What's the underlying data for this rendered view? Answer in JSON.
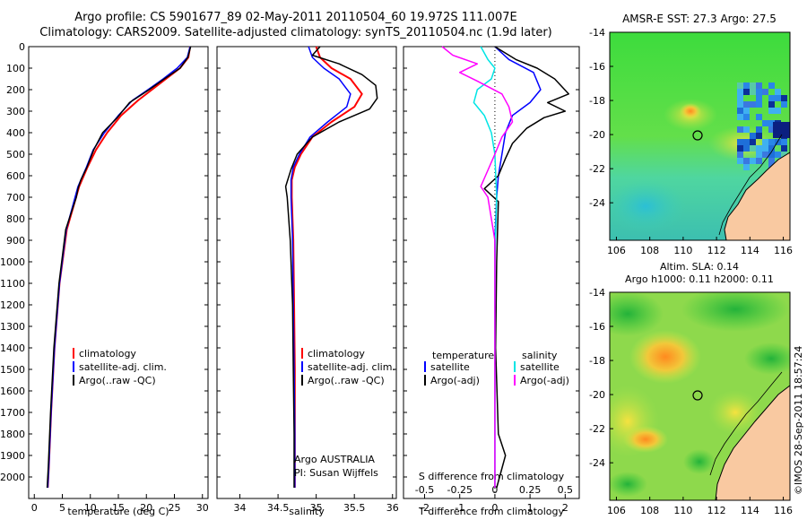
{
  "header": {
    "line1": "Argo profile: CS 5901677_89 02-May-2011 20110504_60 19.972S 111.007E",
    "line2": "Climatology: CARS2009. Satellite-adjusted climatology: synTS_20110504.nc (1.9d later)"
  },
  "sst_title": "AMSR-E SST: 27.3 Argo: 27.5",
  "sla_title1": "Altim. SLA: 0.14",
  "sla_title2": "Argo h1000: 0.11 h2000: 0.11",
  "credit": "©IMOS 28-Sep-2011 18:57:24",
  "colors": {
    "climatology": "#ff0000",
    "satellite": "#0000ff",
    "argo": "#000000",
    "sal_satellite": "#00e5e5",
    "sal_argo": "#ff00ff",
    "land": "#f9c9a1"
  },
  "chart_data": [
    {
      "type": "line",
      "panel": "temperature",
      "xlabel": "temperature (deg C)",
      "ylabel": "",
      "xlim": [
        -1,
        31
      ],
      "ylim": [
        0,
        2100
      ],
      "xticks": [
        0,
        5,
        10,
        15,
        20,
        25,
        30
      ],
      "yticks": [
        0,
        100,
        200,
        300,
        400,
        500,
        600,
        700,
        800,
        900,
        1000,
        1100,
        1200,
        1300,
        1400,
        1500,
        1600,
        1700,
        1800,
        1900,
        2000
      ],
      "legend": [
        "climatology",
        "satellite-adj. clim.",
        "Argo(..raw -QC)"
      ],
      "series": [
        {
          "name": "climatology",
          "x": [
            27.8,
            27.5,
            26.0,
            23.5,
            21.0,
            18.5,
            15.5,
            13.0,
            11.0,
            9.5,
            8.0,
            5.8,
            4.5,
            3.6,
            3.0,
            2.6,
            2.4
          ],
          "y": [
            0,
            50,
            100,
            150,
            200,
            250,
            320,
            400,
            480,
            560,
            650,
            850,
            1100,
            1400,
            1700,
            1950,
            2050
          ]
        },
        {
          "name": "satellite-adj. clim.",
          "x": [
            27.8,
            27.3,
            25.5,
            23.0,
            20.3,
            17.5,
            15.0,
            12.5,
            10.5,
            9.3,
            7.8,
            5.7,
            4.5,
            3.6,
            3.0,
            2.6,
            2.4
          ],
          "y": [
            0,
            50,
            100,
            150,
            200,
            250,
            320,
            400,
            480,
            560,
            650,
            850,
            1100,
            1400,
            1700,
            1950,
            2050
          ]
        },
        {
          "name": "Argo(..raw -QC)",
          "x": [
            27.9,
            27.4,
            26.0,
            23.2,
            20.5,
            17.0,
            14.8,
            12.2,
            10.6,
            9.4,
            8.3,
            7.8,
            7.5,
            5.6,
            4.4,
            3.5,
            2.9,
            2.5,
            2.3
          ],
          "y": [
            0,
            50,
            100,
            150,
            200,
            260,
            330,
            400,
            480,
            560,
            620,
            660,
            700,
            850,
            1100,
            1400,
            1700,
            1950,
            2050
          ]
        }
      ]
    },
    {
      "type": "line",
      "panel": "salinity",
      "xlabel": "salinity",
      "xlim": [
        33.7,
        36.05
      ],
      "ylim": [
        0,
        2100
      ],
      "xticks": [
        34,
        34.5,
        35,
        35.5,
        36
      ],
      "legend": [
        "climatology",
        "satellite-adj. clim.",
        "Argo(..raw -QC)"
      ],
      "annotation": [
        "Argo AUSTRALIA",
        "PI: Susan Wijffels"
      ],
      "series": [
        {
          "name": "climatology",
          "x": [
            35.0,
            35.05,
            35.2,
            35.45,
            35.6,
            35.5,
            35.2,
            34.95,
            34.8,
            34.72,
            34.68,
            34.68,
            34.7,
            34.71,
            34.72,
            34.72,
            34.72
          ],
          "y": [
            0,
            50,
            100,
            150,
            220,
            280,
            350,
            420,
            500,
            560,
            620,
            700,
            900,
            1200,
            1500,
            1800,
            2050
          ]
        },
        {
          "name": "satellite-adj. clim.",
          "x": [
            34.9,
            34.95,
            35.1,
            35.3,
            35.45,
            35.4,
            35.15,
            34.92,
            34.78,
            34.7,
            34.67,
            34.67,
            34.69,
            34.7,
            34.71,
            34.72,
            34.72
          ],
          "y": [
            0,
            50,
            100,
            150,
            220,
            280,
            350,
            420,
            500,
            560,
            620,
            700,
            900,
            1200,
            1500,
            1800,
            2050
          ]
        },
        {
          "name": "Argo(..raw -QC)",
          "x": [
            35.05,
            34.95,
            35.3,
            35.6,
            35.78,
            35.8,
            35.7,
            35.3,
            34.95,
            34.75,
            34.67,
            34.6,
            34.62,
            34.66,
            34.69,
            34.7,
            34.71,
            34.71
          ],
          "y": [
            0,
            40,
            80,
            130,
            180,
            240,
            290,
            350,
            420,
            500,
            570,
            650,
            700,
            900,
            1200,
            1500,
            1800,
            2050
          ]
        }
      ]
    },
    {
      "type": "line",
      "panel": "difference",
      "xlabel": "T difference from climatology",
      "x2label": "S difference from climatology",
      "xlim": [
        -2.6,
        2.4
      ],
      "ylim": [
        0,
        2100
      ],
      "xticks": [
        -2,
        -1,
        0,
        1,
        2
      ],
      "x2ticks": [
        -0.5,
        -0.25,
        0,
        0.25,
        0.5
      ],
      "x2tick_labels": [
        "-0.5",
        "-0.25",
        "0",
        "0.25",
        "0.5"
      ],
      "legend_headers": [
        "temperature",
        "salinity"
      ],
      "legend": [
        "satellite",
        "Argo(-adj)",
        "satellite",
        "Argo(-adj)"
      ],
      "series": [
        {
          "name": "temperature satellite",
          "x": [
            0.0,
            0.4,
            1.1,
            1.3,
            1.0,
            0.5,
            0.3,
            0.2,
            0.1,
            0.05,
            0.0,
            0.0,
            0.0,
            0.0
          ],
          "y": [
            0,
            60,
            120,
            200,
            260,
            320,
            400,
            500,
            600,
            700,
            900,
            1200,
            1600,
            2050
          ]
        },
        {
          "name": "temperature Argo(-adj)",
          "x": [
            0.0,
            0.6,
            1.2,
            1.7,
            2.1,
            1.5,
            2.0,
            1.4,
            0.9,
            0.5,
            0.3,
            0.1,
            -0.3,
            0.1,
            0.05,
            0.02,
            0.1,
            0.3,
            0.05
          ],
          "y": [
            0,
            60,
            100,
            150,
            220,
            260,
            300,
            330,
            380,
            450,
            520,
            600,
            660,
            720,
            1000,
            1400,
            1800,
            1900,
            2050
          ]
        },
        {
          "name": "salinity satellite",
          "x": [
            -0.4,
            -0.2,
            0.0,
            -0.1,
            -0.5,
            -0.6,
            -0.3,
            -0.1,
            0.0,
            0.05,
            0.0,
            0.0,
            0.0
          ],
          "y": [
            0,
            60,
            100,
            150,
            200,
            260,
            320,
            400,
            500,
            700,
            1000,
            1500,
            2050
          ]
        },
        {
          "name": "salinity Argo(-adj)",
          "x": [
            -1.5,
            -1.2,
            -0.5,
            -1.0,
            -0.5,
            0.2,
            0.4,
            0.5,
            0.2,
            0.0,
            -0.4,
            -0.2,
            0.0,
            0.0,
            0.0
          ],
          "y": [
            0,
            40,
            80,
            120,
            160,
            220,
            280,
            350,
            420,
            500,
            650,
            700,
            900,
            1500,
            2050
          ]
        }
      ]
    },
    {
      "type": "heatmap",
      "panel": "AMSR-E SST map",
      "title": "AMSR-E SST: 27.3 Argo: 27.5",
      "xlim": [
        105.6,
        116.4
      ],
      "ylim": [
        -26.2,
        -14
      ],
      "xticks": [
        106,
        108,
        110,
        112,
        114,
        116
      ],
      "yticks": [
        -14,
        -16,
        -18,
        -20,
        -22,
        -24
      ],
      "argo_position": {
        "lon": 111.0,
        "lat": -20.0
      }
    },
    {
      "type": "heatmap",
      "panel": "Altimeter SLA map",
      "title": "Altim. SLA: 0.14 / Argo h1000: 0.11 h2000: 0.11",
      "xlim": [
        105.6,
        116.4
      ],
      "ylim": [
        -26.2,
        -14
      ],
      "xticks": [
        106,
        108,
        110,
        112,
        114,
        116
      ],
      "yticks": [
        -14,
        -16,
        -18,
        -20,
        -22,
        -24
      ],
      "argo_position": {
        "lon": 111.0,
        "lat": -20.0
      }
    }
  ]
}
